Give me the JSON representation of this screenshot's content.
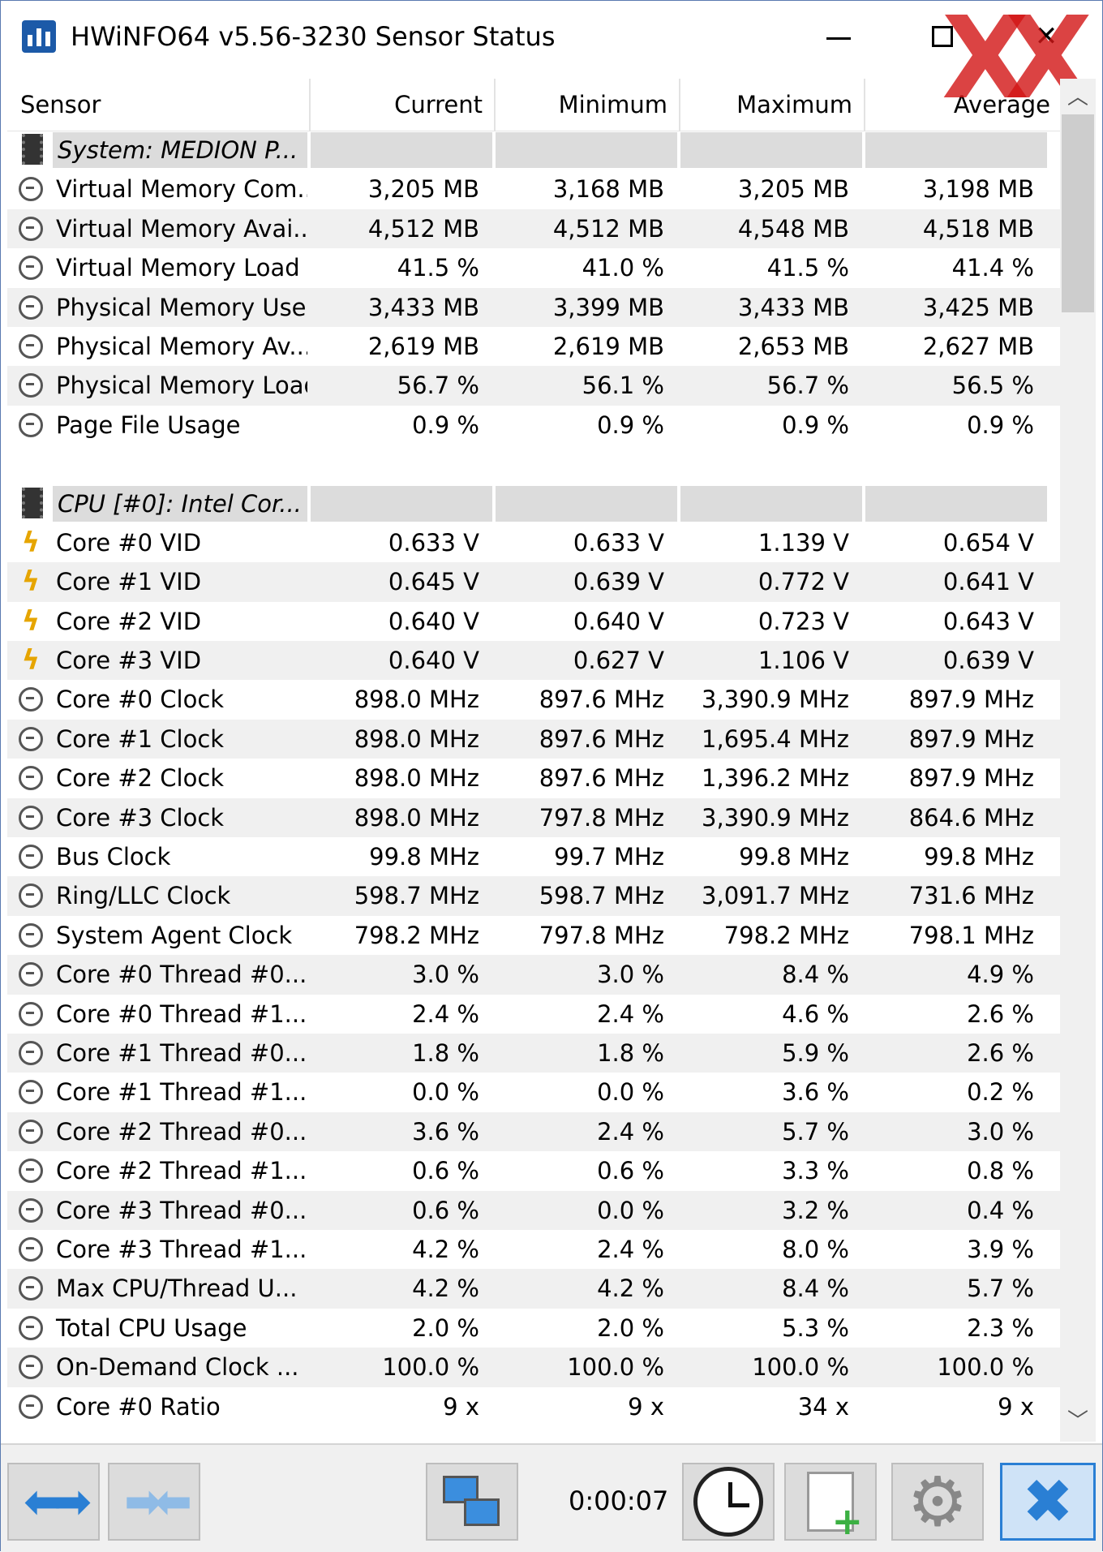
{
  "window": {
    "title": "HWiNFO64 v5.56-3230 Sensor Status"
  },
  "columns": [
    "Sensor",
    "Current",
    "Minimum",
    "Maximum",
    "Average"
  ],
  "watermark": "XX",
  "rows": [
    {
      "type": "group",
      "icon": "chip-icon",
      "label": "System: MEDION P..."
    },
    {
      "type": "sensor",
      "icon": "gauge-icon",
      "label": "Virtual Memory Com...",
      "current": "3,205 MB",
      "minimum": "3,168 MB",
      "maximum": "3,205 MB",
      "average": "3,198 MB"
    },
    {
      "type": "sensor",
      "icon": "gauge-icon",
      "label": "Virtual Memory Avai...",
      "current": "4,512 MB",
      "minimum": "4,512 MB",
      "maximum": "4,548 MB",
      "average": "4,518 MB"
    },
    {
      "type": "sensor",
      "icon": "gauge-icon",
      "label": "Virtual Memory Load",
      "current": "41.5 %",
      "minimum": "41.0 %",
      "maximum": "41.5 %",
      "average": "41.4 %"
    },
    {
      "type": "sensor",
      "icon": "gauge-icon",
      "label": "Physical Memory Used",
      "current": "3,433 MB",
      "minimum": "3,399 MB",
      "maximum": "3,433 MB",
      "average": "3,425 MB"
    },
    {
      "type": "sensor",
      "icon": "gauge-icon",
      "label": "Physical Memory Av...",
      "current": "2,619 MB",
      "minimum": "2,619 MB",
      "maximum": "2,653 MB",
      "average": "2,627 MB"
    },
    {
      "type": "sensor",
      "icon": "gauge-icon",
      "label": "Physical Memory Load",
      "current": "56.7 %",
      "minimum": "56.1 %",
      "maximum": "56.7 %",
      "average": "56.5 %"
    },
    {
      "type": "sensor",
      "icon": "gauge-icon",
      "label": "Page File Usage",
      "current": "0.9 %",
      "minimum": "0.9 %",
      "maximum": "0.9 %",
      "average": "0.9 %"
    },
    {
      "type": "blank"
    },
    {
      "type": "group",
      "icon": "chip-icon",
      "label": "CPU [#0]: Intel Cor..."
    },
    {
      "type": "sensor",
      "icon": "voltage-icon",
      "label": "Core #0 VID",
      "current": "0.633 V",
      "minimum": "0.633 V",
      "maximum": "1.139 V",
      "average": "0.654 V"
    },
    {
      "type": "sensor",
      "icon": "voltage-icon",
      "label": "Core #1 VID",
      "current": "0.645 V",
      "minimum": "0.639 V",
      "maximum": "0.772 V",
      "average": "0.641 V"
    },
    {
      "type": "sensor",
      "icon": "voltage-icon",
      "label": "Core #2 VID",
      "current": "0.640 V",
      "minimum": "0.640 V",
      "maximum": "0.723 V",
      "average": "0.643 V"
    },
    {
      "type": "sensor",
      "icon": "voltage-icon",
      "label": "Core #3 VID",
      "current": "0.640 V",
      "minimum": "0.627 V",
      "maximum": "1.106 V",
      "average": "0.639 V"
    },
    {
      "type": "sensor",
      "icon": "gauge-icon",
      "label": "Core #0 Clock",
      "current": "898.0 MHz",
      "minimum": "897.6 MHz",
      "maximum": "3,390.9 MHz",
      "average": "897.9 MHz"
    },
    {
      "type": "sensor",
      "icon": "gauge-icon",
      "label": "Core #1 Clock",
      "current": "898.0 MHz",
      "minimum": "897.6 MHz",
      "maximum": "1,695.4 MHz",
      "average": "897.9 MHz"
    },
    {
      "type": "sensor",
      "icon": "gauge-icon",
      "label": "Core #2 Clock",
      "current": "898.0 MHz",
      "minimum": "897.6 MHz",
      "maximum": "1,396.2 MHz",
      "average": "897.9 MHz"
    },
    {
      "type": "sensor",
      "icon": "gauge-icon",
      "label": "Core #3 Clock",
      "current": "898.0 MHz",
      "minimum": "797.8 MHz",
      "maximum": "3,390.9 MHz",
      "average": "864.6 MHz"
    },
    {
      "type": "sensor",
      "icon": "gauge-icon",
      "label": "Bus Clock",
      "current": "99.8 MHz",
      "minimum": "99.7 MHz",
      "maximum": "99.8 MHz",
      "average": "99.8 MHz"
    },
    {
      "type": "sensor",
      "icon": "gauge-icon",
      "label": "Ring/LLC Clock",
      "current": "598.7 MHz",
      "minimum": "598.7 MHz",
      "maximum": "3,091.7 MHz",
      "average": "731.6 MHz"
    },
    {
      "type": "sensor",
      "icon": "gauge-icon",
      "label": "System Agent Clock",
      "current": "798.2 MHz",
      "minimum": "797.8 MHz",
      "maximum": "798.2 MHz",
      "average": "798.1 MHz"
    },
    {
      "type": "sensor",
      "icon": "gauge-icon",
      "label": "Core #0 Thread #0...",
      "current": "3.0 %",
      "minimum": "3.0 %",
      "maximum": "8.4 %",
      "average": "4.9 %"
    },
    {
      "type": "sensor",
      "icon": "gauge-icon",
      "label": "Core #0 Thread #1...",
      "current": "2.4 %",
      "minimum": "2.4 %",
      "maximum": "4.6 %",
      "average": "2.6 %"
    },
    {
      "type": "sensor",
      "icon": "gauge-icon",
      "label": "Core #1 Thread #0...",
      "current": "1.8 %",
      "minimum": "1.8 %",
      "maximum": "5.9 %",
      "average": "2.6 %"
    },
    {
      "type": "sensor",
      "icon": "gauge-icon",
      "label": "Core #1 Thread #1...",
      "current": "0.0 %",
      "minimum": "0.0 %",
      "maximum": "3.6 %",
      "average": "0.2 %"
    },
    {
      "type": "sensor",
      "icon": "gauge-icon",
      "label": "Core #2 Thread #0...",
      "current": "3.6 %",
      "minimum": "2.4 %",
      "maximum": "5.7 %",
      "average": "3.0 %"
    },
    {
      "type": "sensor",
      "icon": "gauge-icon",
      "label": "Core #2 Thread #1...",
      "current": "0.6 %",
      "minimum": "0.6 %",
      "maximum": "3.3 %",
      "average": "0.8 %"
    },
    {
      "type": "sensor",
      "icon": "gauge-icon",
      "label": "Core #3 Thread #0...",
      "current": "0.6 %",
      "minimum": "0.0 %",
      "maximum": "3.2 %",
      "average": "0.4 %"
    },
    {
      "type": "sensor",
      "icon": "gauge-icon",
      "label": "Core #3 Thread #1...",
      "current": "4.2 %",
      "minimum": "2.4 %",
      "maximum": "8.0 %",
      "average": "3.9 %"
    },
    {
      "type": "sensor",
      "icon": "gauge-icon",
      "label": "Max CPU/Thread U...",
      "current": "4.2 %",
      "minimum": "4.2 %",
      "maximum": "8.4 %",
      "average": "5.7 %"
    },
    {
      "type": "sensor",
      "icon": "gauge-icon",
      "label": "Total CPU Usage",
      "current": "2.0 %",
      "minimum": "2.0 %",
      "maximum": "5.3 %",
      "average": "2.3 %"
    },
    {
      "type": "sensor",
      "icon": "gauge-icon",
      "label": "On-Demand Clock ...",
      "current": "100.0 %",
      "minimum": "100.0 %",
      "maximum": "100.0 %",
      "average": "100.0 %"
    },
    {
      "type": "sensor",
      "icon": "gauge-icon",
      "label": "Core #0 Ratio",
      "current": "9 x",
      "minimum": "9 x",
      "maximum": "34 x",
      "average": "9 x"
    }
  ],
  "toolbar": {
    "timer": "0:00:07",
    "icons": [
      "expand-arrows-icon",
      "collapse-arrows-icon",
      "network-icon",
      "clock-icon",
      "add-report-icon",
      "gear-icon",
      "close-icon"
    ]
  },
  "colors": {
    "accent": "#2a7fd4",
    "group_bg": "#dcdcdc",
    "alt_row": "#f0f0f0",
    "voltage": "#e6a500"
  }
}
